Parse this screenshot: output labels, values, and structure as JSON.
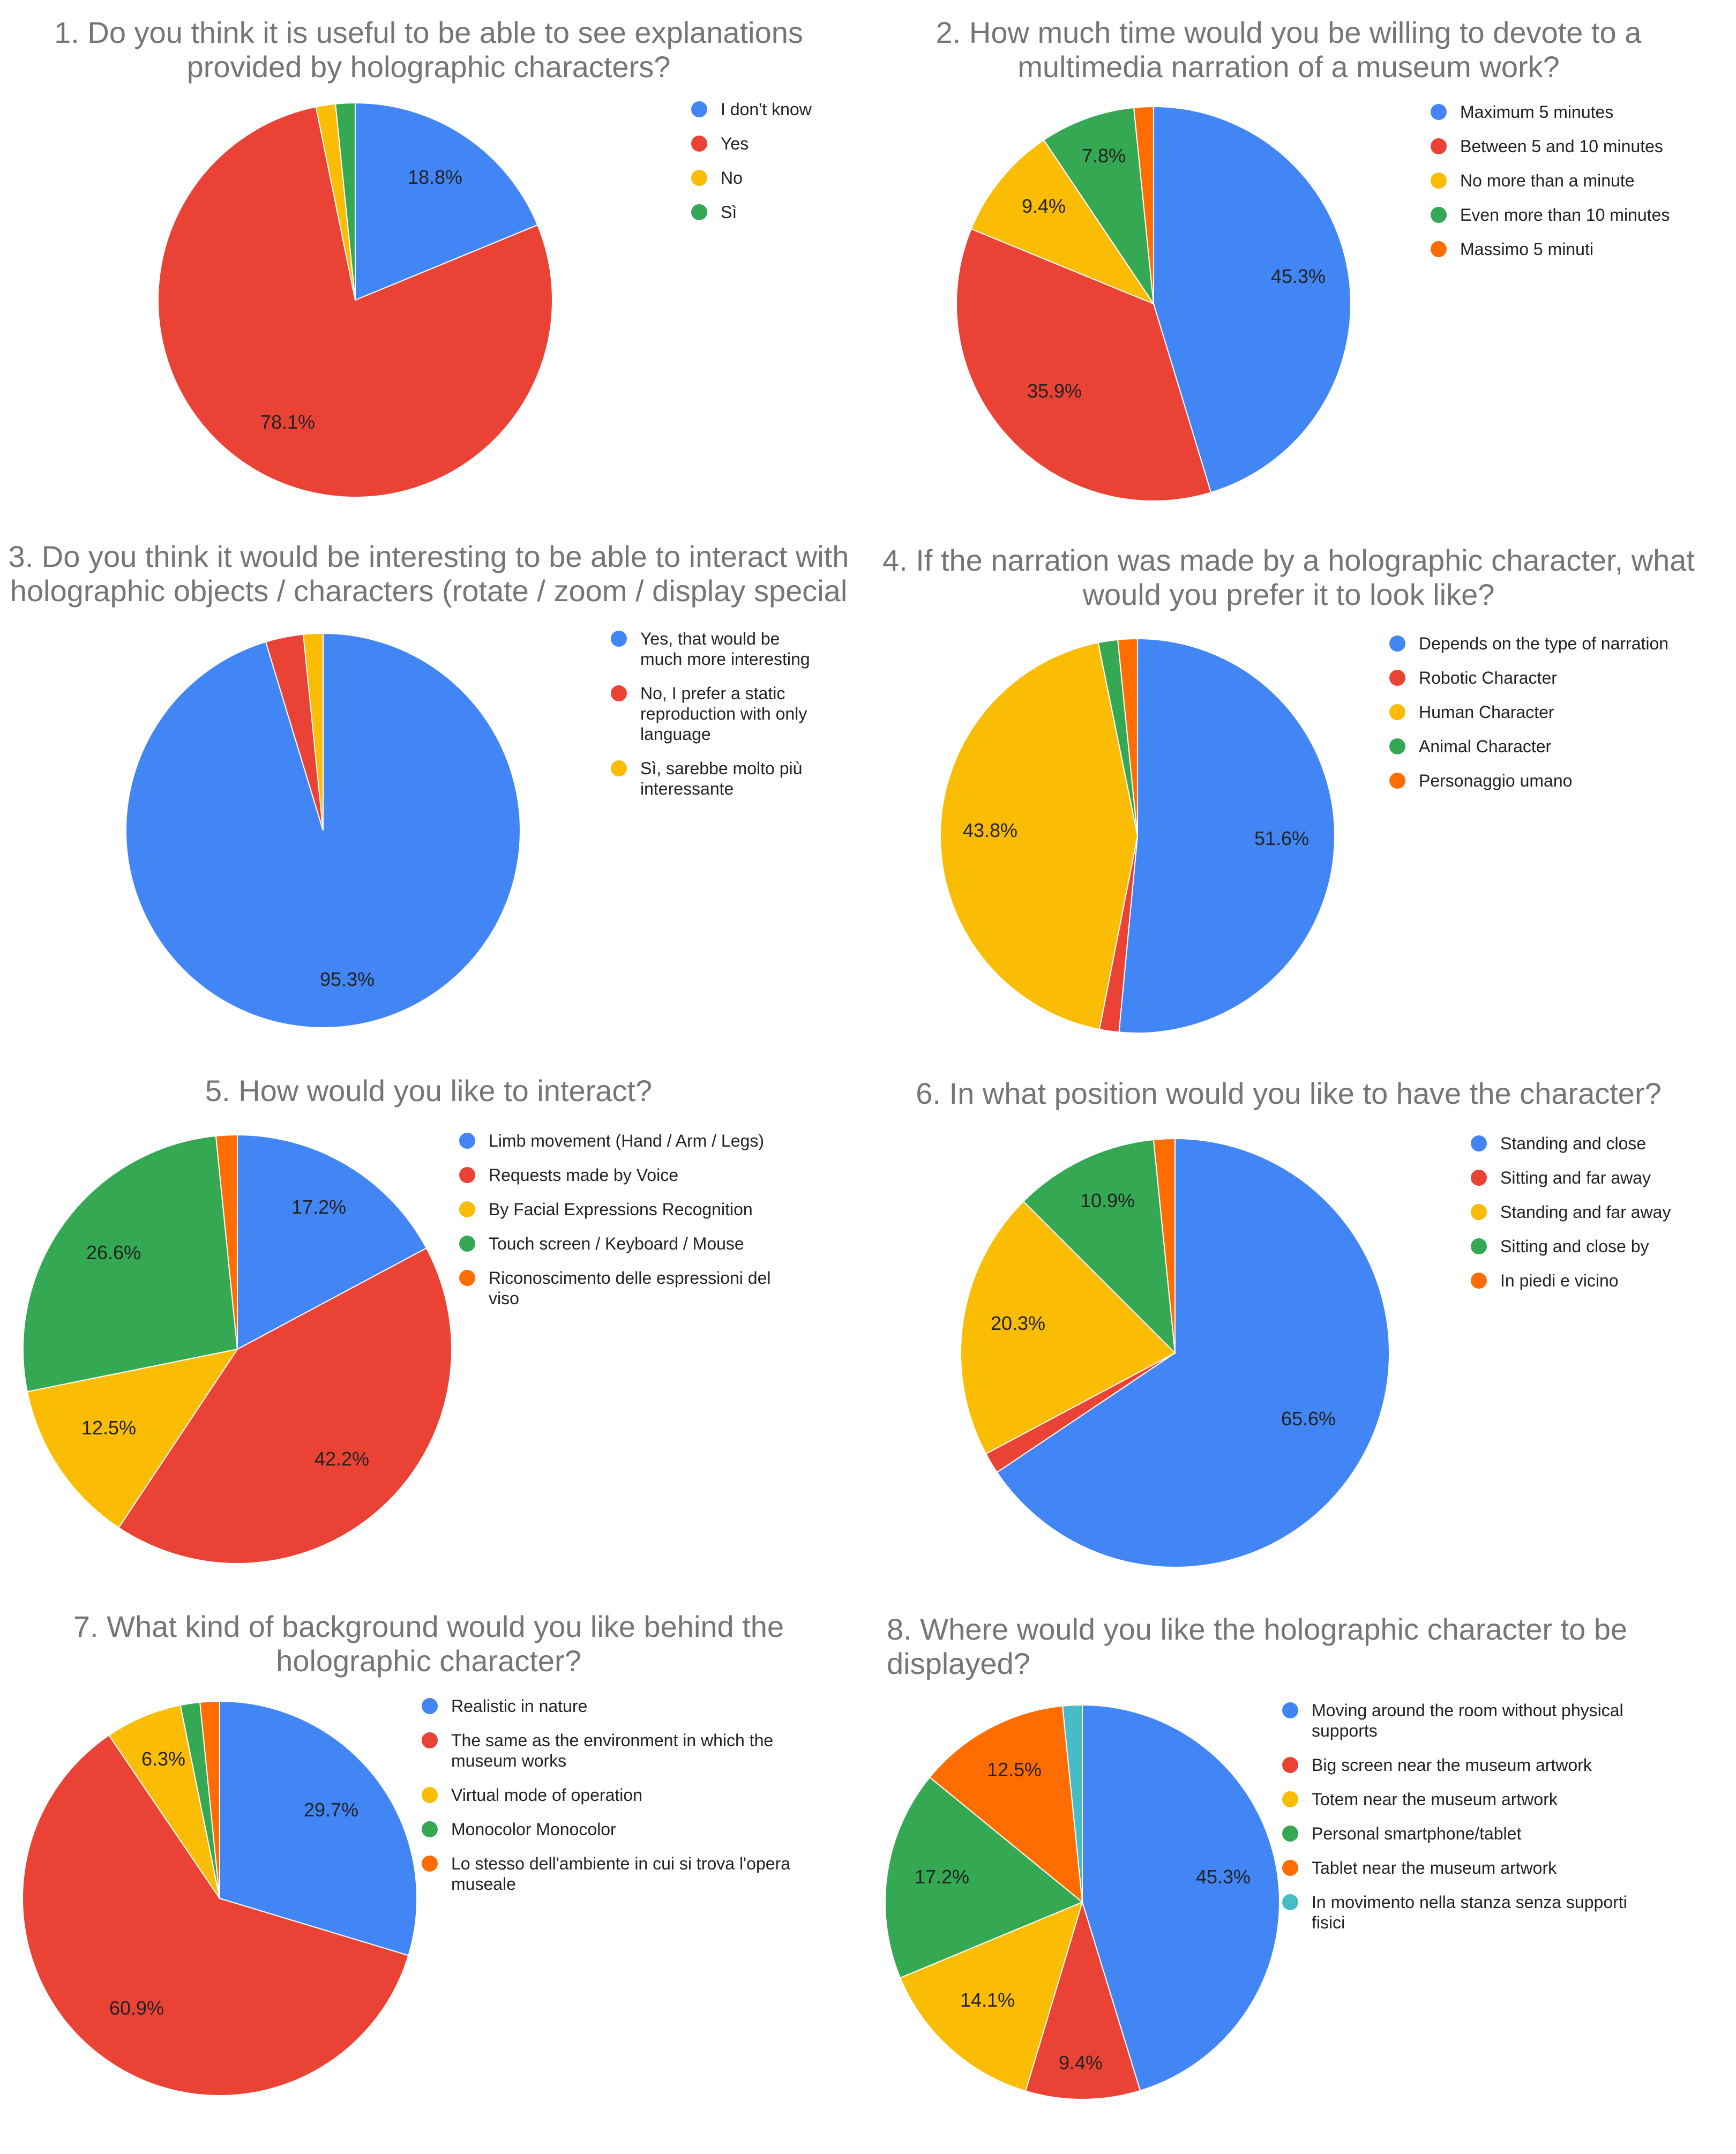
{
  "chart_data": [
    {
      "type": "pie",
      "title_lines": [
        "1. Do you think it is useful to be able to see explanations",
        "provided by holographic characters?"
      ],
      "categories": [
        "I don't know",
        "Yes",
        "No",
        "Sì"
      ],
      "values": [
        18.8,
        78.1,
        1.6,
        1.6
      ],
      "colors": [
        "#4285f4",
        "#ea4335",
        "#fbbc04",
        "#34a853"
      ],
      "labels": [
        "18.8%",
        "78.1%",
        "",
        ""
      ]
    },
    {
      "type": "pie",
      "title_lines": [
        "2. How much time would you be willing to devote to a",
        "multimedia narration of a museum work?"
      ],
      "categories": [
        "Maximum 5 minutes",
        "Between 5 and 10 minutes",
        "No more than a minute",
        "Even more than 10 minutes",
        "Massimo 5 minuti"
      ],
      "values": [
        45.3,
        35.9,
        9.4,
        7.8,
        1.6
      ],
      "colors": [
        "#4285f4",
        "#ea4335",
        "#fbbc04",
        "#34a853",
        "#ff6d01"
      ],
      "labels": [
        "45.3%",
        "35.9%",
        "9.4%",
        "7.8%",
        ""
      ]
    },
    {
      "type": "pie",
      "title_lines": [
        "3. Do you think it would be interesting to be able to interact with",
        "holographic objects / characters (rotate / zoom / display special"
      ],
      "categories": [
        "Yes, that would be much more interesting",
        "No, I prefer a static reproduction with only language",
        "Sì, sarebbe molto più interessante"
      ],
      "legend_lines": [
        [
          "Yes, that would be",
          "much more interesting"
        ],
        [
          "No, I prefer a static",
          "reproduction with only",
          "language"
        ],
        [
          "Sì, sarebbe molto più",
          "interessante"
        ]
      ],
      "values": [
        95.3,
        3.1,
        1.6
      ],
      "colors": [
        "#4285f4",
        "#ea4335",
        "#fbbc04"
      ],
      "labels": [
        "95.3%",
        "",
        ""
      ]
    },
    {
      "type": "pie",
      "title_lines": [
        "4. If the narration was made by a holographic character, what",
        "would you prefer it to look like?"
      ],
      "categories": [
        "Depends on the type of narration",
        "Robotic Character",
        "Human Character",
        "Animal Character",
        "Personaggio umano"
      ],
      "values": [
        51.6,
        1.6,
        43.8,
        1.6,
        1.6
      ],
      "colors": [
        "#4285f4",
        "#ea4335",
        "#fbbc04",
        "#34a853",
        "#ff6d01"
      ],
      "labels": [
        "51.6%",
        "",
        "43.8%",
        "",
        ""
      ]
    },
    {
      "type": "pie",
      "title_lines": [
        "5.  How would you like to interact?"
      ],
      "categories": [
        "Limb movement (Hand / Arm / Legs)",
        "Requests made by Voice",
        "By Facial Expressions Recognition",
        "Touch screen / Keyboard / Mouse",
        "Riconoscimento delle espressioni del viso"
      ],
      "legend_lines": [
        [
          "Limb movement (Hand / Arm / Legs)"
        ],
        [
          "Requests made by Voice"
        ],
        [
          "By Facial Expressions Recognition"
        ],
        [
          "Touch screen / Keyboard / Mouse"
        ],
        [
          "Riconoscimento delle espressioni del",
          "viso"
        ]
      ],
      "values": [
        17.2,
        42.2,
        12.5,
        26.6,
        1.6
      ],
      "colors": [
        "#4285f4",
        "#ea4335",
        "#fbbc04",
        "#34a853",
        "#ff6d01"
      ],
      "labels": [
        "17.2%",
        "42.2%",
        "12.5%",
        "26.6%",
        ""
      ]
    },
    {
      "type": "pie",
      "title_lines": [
        "6. In what position would you like to have the character?"
      ],
      "categories": [
        "Standing and close",
        "Sitting and far away",
        "Standing and far away",
        "Sitting and close by",
        "In piedi e vicino"
      ],
      "values": [
        65.6,
        1.6,
        20.3,
        10.9,
        1.6
      ],
      "colors": [
        "#4285f4",
        "#ea4335",
        "#fbbc04",
        "#34a853",
        "#ff6d01"
      ],
      "labels": [
        "65.6%",
        "",
        "20.3%",
        "10.9%",
        ""
      ]
    },
    {
      "type": "pie",
      "title_lines": [
        "7. What kind of background would you like behind the",
        "holographic character?"
      ],
      "categories": [
        "Realistic in nature",
        "The same as the environment in which the museum works",
        "Virtual mode of operation",
        "Monocolor Monocolor",
        "Lo stesso dell'ambiente in cui si trova l'opera museale"
      ],
      "legend_lines": [
        [
          "Realistic in nature"
        ],
        [
          "The same as the environment in which the",
          "museum works"
        ],
        [
          "Virtual mode of operation"
        ],
        [
          "Monocolor Monocolor"
        ],
        [
          "Lo stesso dell'ambiente in cui si trova l'opera",
          "museale"
        ]
      ],
      "values": [
        29.7,
        60.9,
        6.3,
        1.6,
        1.6
      ],
      "colors": [
        "#4285f4",
        "#ea4335",
        "#fbbc04",
        "#34a853",
        "#ff6d01"
      ],
      "labels": [
        "29.7%",
        "60.9%",
        "6.3%",
        "",
        ""
      ]
    },
    {
      "type": "pie",
      "title_lines": [
        "8. Where would you like the holographic character to be",
        "displayed?"
      ],
      "categories": [
        "Moving around the room without physical supports",
        "Big screen near the museum artwork",
        "Totem near the museum artwork",
        "Personal smartphone/tablet",
        "Tablet near the museum artwork",
        "In movimento nella stanza senza supporti fisici"
      ],
      "legend_lines": [
        [
          "Moving around the room without physical",
          "supports"
        ],
        [
          "Big screen near the museum artwork"
        ],
        [
          "Totem near the museum artwork"
        ],
        [
          "Personal smartphone/tablet"
        ],
        [
          "Tablet near the museum artwork"
        ],
        [
          "In movimento nella stanza senza supporti",
          "fisici"
        ]
      ],
      "values": [
        45.3,
        9.4,
        14.1,
        17.2,
        12.5,
        1.6
      ],
      "colors": [
        "#4285f4",
        "#ea4335",
        "#fbbc04",
        "#34a853",
        "#ff6d01",
        "#46bdc6"
      ],
      "labels": [
        "45.3%",
        "9.4%",
        "14.1%",
        "17.2%",
        "12.5%",
        ""
      ]
    }
  ]
}
